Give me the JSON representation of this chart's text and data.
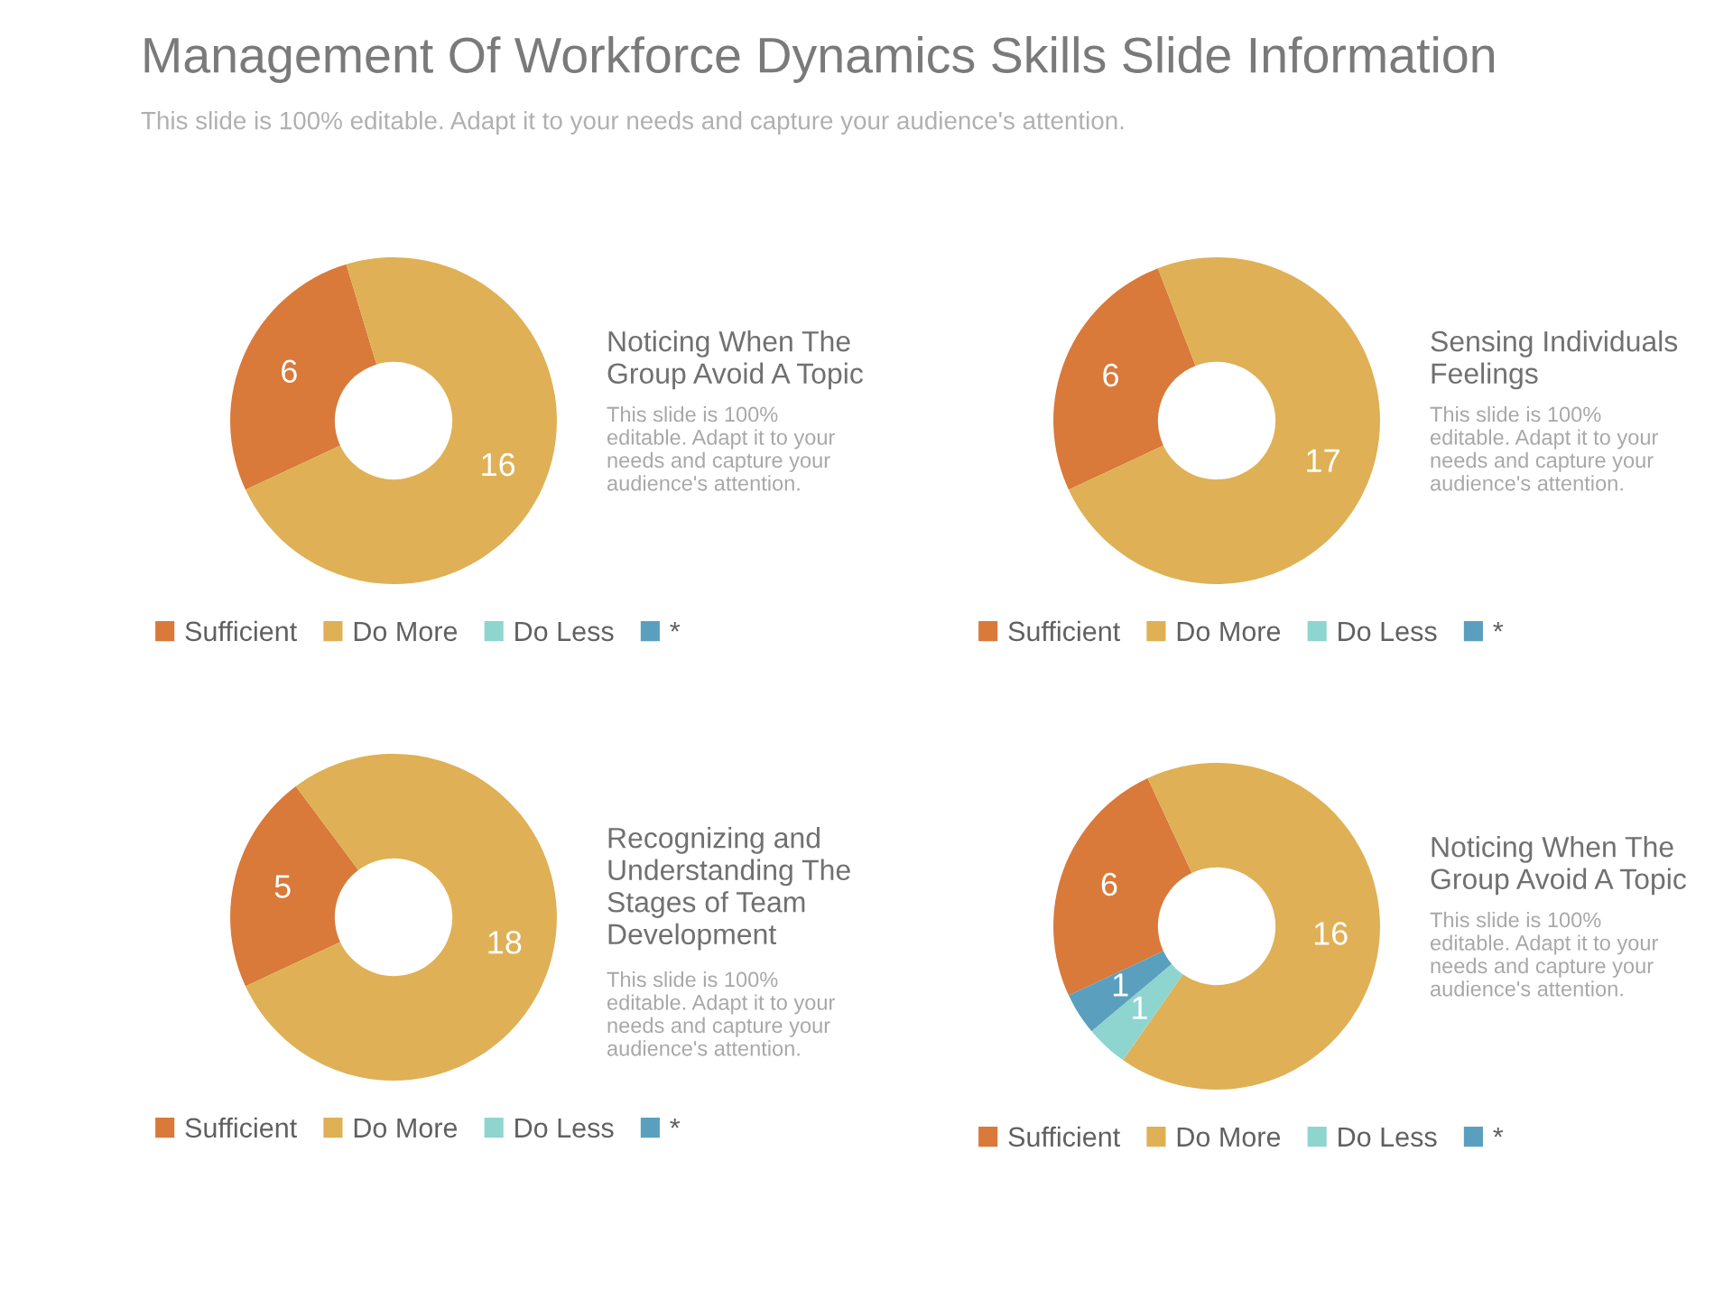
{
  "chart_data": [
    {
      "type": "donut",
      "title": "Noticing When The\nGroup Avoid A Topic",
      "categories": [
        "Sufficient",
        "Do More",
        "Do Less",
        "*"
      ],
      "values": [
        6,
        16,
        null,
        null
      ],
      "colors": [
        "#d9793a",
        "#dfb055",
        "#8fd5cf",
        "#5b9fbf"
      ],
      "data_labels": true,
      "legend": "bottom",
      "annotations": [
        "Management Of Workforce Dynamics Skills Slide Information",
        "This slide is 100% editable. Adapt it to your needs and capture your audience's attention.",
        "This slide is 100%\neditable. Adapt it to your\nneeds and capture your\naudience's attention."
      ]
    },
    {
      "type": "donut",
      "title": "Sensing Individuals\nFeelings",
      "categories": [
        "Sufficient",
        "Do More",
        "Do Less",
        "*"
      ],
      "values": [
        6,
        17,
        null,
        null
      ],
      "colors": [
        "#d9793a",
        "#dfb055",
        "#8fd5cf",
        "#5b9fbf"
      ],
      "data_labels": true,
      "legend": "bottom",
      "annotations": [
        "This slide is 100%\neditable. Adapt it to your\nneeds and capture your\naudience's attention."
      ]
    },
    {
      "type": "donut",
      "title": "Recognizing and\nUnderstanding The\nStages of Team\nDevelopment",
      "categories": [
        "Sufficient",
        "Do More",
        "Do Less",
        "*"
      ],
      "values": [
        5,
        18,
        null,
        null
      ],
      "colors": [
        "#d9793a",
        "#dfb055",
        "#8fd5cf",
        "#5b9fbf"
      ],
      "data_labels": true,
      "legend": "bottom",
      "annotations": [
        "This slide is 100%\neditable. Adapt it to your\nneeds and capture your\naudience's attention."
      ]
    },
    {
      "type": "donut",
      "title": "Noticing When The\nGroup Avoid A Topic",
      "categories": [
        "Sufficient",
        "Do More",
        "Do Less",
        "*"
      ],
      "values": [
        6,
        16,
        1,
        1
      ],
      "colors": [
        "#d9793a",
        "#dfb055",
        "#8fd5cf",
        "#5b9fbf"
      ],
      "data_labels": true,
      "legend": "bottom",
      "annotations": [
        "This slide is 100%\neditable. Adapt it to your\nneeds and capture your\naudience's attention."
      ]
    }
  ]
}
